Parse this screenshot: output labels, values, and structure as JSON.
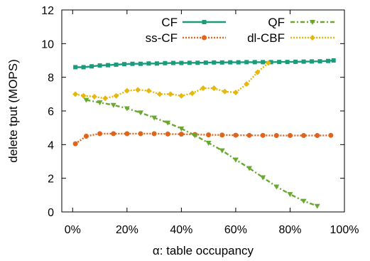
{
  "chart_data": {
    "type": "line",
    "title": "",
    "xlabel": "α: table occupancy",
    "ylabel": "delete tput (MOPS)",
    "xlim": [
      -0.04,
      1.0
    ],
    "ylim": [
      0,
      12
    ],
    "xticks": [
      {
        "value": 0.0,
        "label": "0%"
      },
      {
        "value": 0.2,
        "label": "20%"
      },
      {
        "value": 0.4,
        "label": "40%"
      },
      {
        "value": 0.6,
        "label": "60%"
      },
      {
        "value": 0.8,
        "label": "80%"
      },
      {
        "value": 1.0,
        "label": "100%"
      }
    ],
    "yticks": [
      {
        "value": 0,
        "label": "0"
      },
      {
        "value": 2,
        "label": "2"
      },
      {
        "value": 4,
        "label": "4"
      },
      {
        "value": 6,
        "label": "6"
      },
      {
        "value": 8,
        "label": "8"
      },
      {
        "value": 10,
        "label": "10"
      },
      {
        "value": 12,
        "label": "12"
      }
    ],
    "grid": false,
    "legend_position": "top",
    "series": [
      {
        "name": "CF",
        "color": "#1a9c7c",
        "marker": "square",
        "dash": "solid",
        "x": [
          0.01,
          0.04,
          0.07,
          0.1,
          0.13,
          0.16,
          0.19,
          0.22,
          0.25,
          0.28,
          0.31,
          0.34,
          0.37,
          0.4,
          0.43,
          0.46,
          0.49,
          0.52,
          0.55,
          0.58,
          0.61,
          0.64,
          0.67,
          0.7,
          0.73,
          0.76,
          0.79,
          0.82,
          0.85,
          0.88,
          0.91,
          0.94,
          0.96
        ],
        "y": [
          8.6,
          8.6,
          8.65,
          8.7,
          8.72,
          8.75,
          8.78,
          8.8,
          8.8,
          8.82,
          8.82,
          8.84,
          8.85,
          8.85,
          8.86,
          8.86,
          8.87,
          8.88,
          8.88,
          8.89,
          8.89,
          8.9,
          8.9,
          8.9,
          8.9,
          8.91,
          8.91,
          8.92,
          8.93,
          8.94,
          8.95,
          8.97,
          9.0
        ]
      },
      {
        "name": "ss-CF",
        "color": "#e0641b",
        "marker": "circle",
        "dash": "dotted",
        "x": [
          0.01,
          0.05,
          0.1,
          0.15,
          0.2,
          0.25,
          0.3,
          0.35,
          0.4,
          0.45,
          0.5,
          0.55,
          0.6,
          0.65,
          0.7,
          0.75,
          0.8,
          0.85,
          0.9,
          0.95
        ],
        "y": [
          4.05,
          4.5,
          4.65,
          4.65,
          4.65,
          4.65,
          4.65,
          4.63,
          4.62,
          4.6,
          4.58,
          4.57,
          4.56,
          4.55,
          4.55,
          4.54,
          4.54,
          4.54,
          4.54,
          4.55
        ]
      },
      {
        "name": "QF",
        "color": "#6aa832",
        "marker": "triangle-down",
        "dash": "dashdot",
        "x": [
          0.05,
          0.1,
          0.15,
          0.2,
          0.25,
          0.3,
          0.35,
          0.4,
          0.45,
          0.5,
          0.55,
          0.6,
          0.65,
          0.7,
          0.75,
          0.8,
          0.85,
          0.9
        ],
        "y": [
          6.65,
          6.5,
          6.35,
          6.15,
          5.9,
          5.6,
          5.3,
          4.95,
          4.55,
          4.1,
          3.65,
          3.1,
          2.6,
          2.05,
          1.5,
          1.05,
          0.65,
          0.35
        ]
      },
      {
        "name": "dl-CBF",
        "color": "#e5b80f",
        "marker": "diamond",
        "dash": "dotted",
        "x": [
          0.01,
          0.04,
          0.08,
          0.12,
          0.16,
          0.2,
          0.24,
          0.28,
          0.32,
          0.36,
          0.4,
          0.44,
          0.48,
          0.52,
          0.56,
          0.6,
          0.64,
          0.68,
          0.72
        ],
        "y": [
          7.0,
          6.9,
          6.85,
          6.75,
          6.9,
          7.2,
          7.25,
          7.2,
          7.0,
          7.0,
          6.9,
          7.05,
          7.35,
          7.35,
          7.15,
          7.1,
          7.6,
          8.3,
          8.85
        ]
      }
    ]
  }
}
